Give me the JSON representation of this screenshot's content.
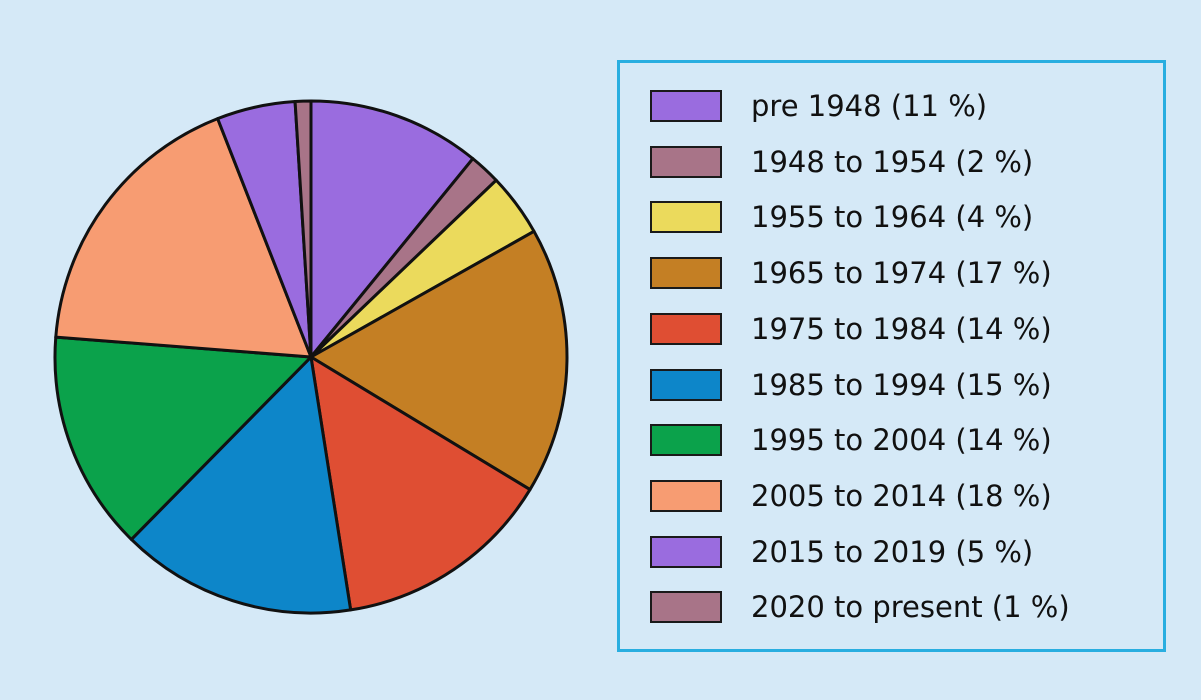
{
  "chart_data": {
    "type": "pie",
    "title": "",
    "unit": "%",
    "series": [
      {
        "values": [
          11,
          2,
          4,
          17,
          14,
          15,
          14,
          18,
          5,
          1
        ]
      }
    ],
    "categories": [
      "pre 1948",
      "1948 to 1954",
      "1955 to 1964",
      "1965 to 1974",
      "1975 to 1984",
      "1985 to 1994",
      "1995 to 2004",
      "2005 to 2014",
      "2015 to 2019",
      "2020 to present"
    ],
    "colors": [
      "#9a6cdf",
      "#a87488",
      "#ebda5c",
      "#c47f24",
      "#df4e33",
      "#0d86c9",
      "#0ba24b",
      "#f79c72",
      "#9a6cdf",
      "#a87488"
    ],
    "start_angle_deg": 0,
    "direction": "clockwise",
    "legend": {
      "position": "right",
      "labels": [
        "pre 1948 (11 %)",
        "1948 to 1954 (2 %)",
        "1955 to 1964 (4 %)",
        "1965 to 1974 (17 %)",
        "1975 to 1984 (14 %)",
        "1985 to 1994 (15 %)",
        "1995 to 2004 (14 %)",
        "2005 to 2014 (18 %)",
        "2015 to 2019 (5 %)",
        "2020 to present (1 %)"
      ]
    }
  },
  "style": {
    "background": "#d5e9f7",
    "legend_border": "#29aee0",
    "slice_outline": "#111111"
  }
}
